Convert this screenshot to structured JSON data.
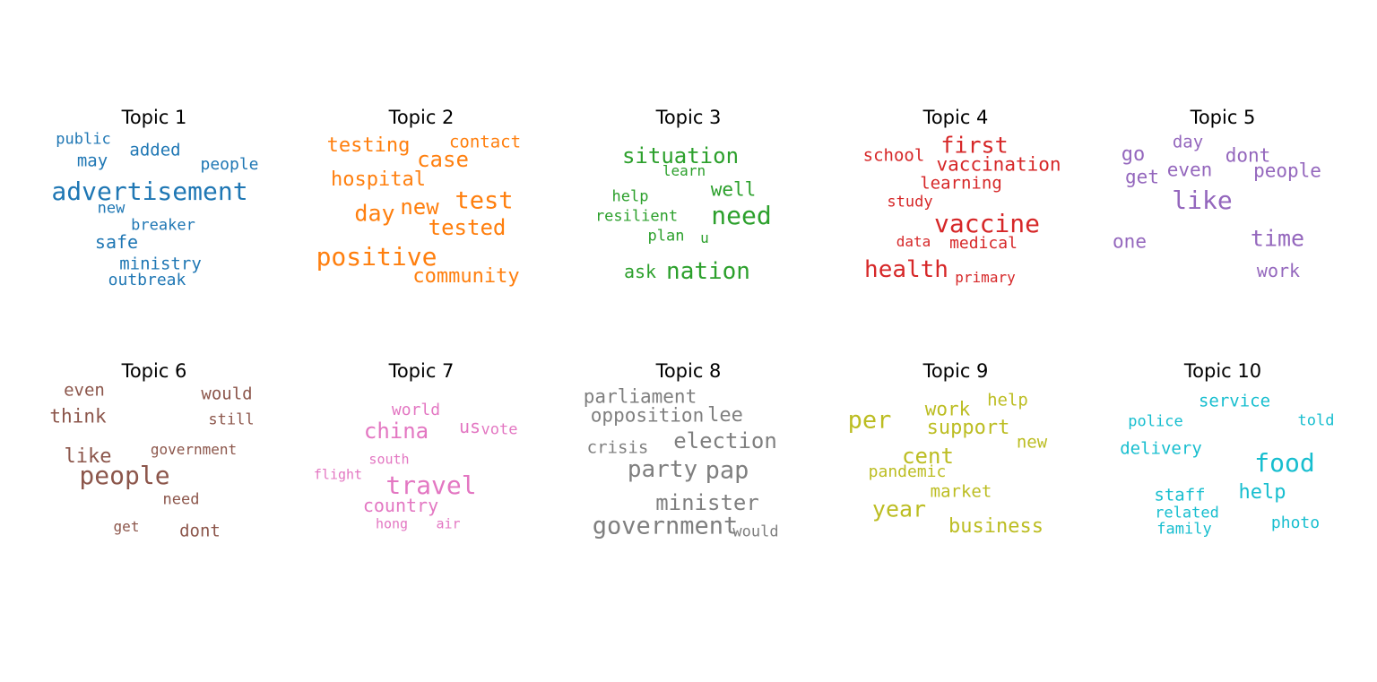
{
  "topics": [
    {
      "title": "Topic 1",
      "color": "#1f77b4",
      "words": [
        "public",
        "may",
        "added",
        "people",
        "advertisement",
        "new",
        "breaker",
        "safe",
        "ministry",
        "outbreak"
      ]
    },
    {
      "title": "Topic 2",
      "color": "#ff7f0e",
      "words": [
        "testing",
        "contact",
        "case",
        "hospital",
        "day",
        "new",
        "test",
        "tested",
        "positive",
        "community"
      ]
    },
    {
      "title": "Topic 3",
      "color": "#2ca02c",
      "words": [
        "situation",
        "learn",
        "help",
        "well",
        "resilient",
        "need",
        "plan",
        "u",
        "ask",
        "nation"
      ]
    },
    {
      "title": "Topic 4",
      "color": "#d62728",
      "words": [
        "school",
        "first",
        "vaccination",
        "learning",
        "study",
        "vaccine",
        "data",
        "medical",
        "health",
        "primary"
      ]
    },
    {
      "title": "Topic 5",
      "color": "#9467bd",
      "words": [
        "day",
        "go",
        "dont",
        "get",
        "even",
        "people",
        "like",
        "time",
        "one",
        "work"
      ]
    },
    {
      "title": "Topic 6",
      "color": "#8c564b",
      "words": [
        "even",
        "would",
        "think",
        "still",
        "like",
        "government",
        "people",
        "need",
        "get",
        "dont"
      ]
    },
    {
      "title": "Topic 7",
      "color": "#e377c2",
      "words": [
        "world",
        "us",
        "vote",
        "china",
        "south",
        "flight",
        "travel",
        "country",
        "hong",
        "air"
      ]
    },
    {
      "title": "Topic 8",
      "color": "#7f7f7f",
      "words": [
        "parliament",
        "opposition",
        "lee",
        "crisis",
        "election",
        "party",
        "pap",
        "minister",
        "government",
        "would"
      ]
    },
    {
      "title": "Topic 9",
      "color": "#bcbd22",
      "words": [
        "help",
        "work",
        "per",
        "support",
        "new",
        "cent",
        "pandemic",
        "market",
        "year",
        "business"
      ]
    },
    {
      "title": "Topic 10",
      "color": "#17becf",
      "words": [
        "service",
        "police",
        "told",
        "delivery",
        "food",
        "staff",
        "help",
        "related",
        "family",
        "photo"
      ]
    }
  ]
}
